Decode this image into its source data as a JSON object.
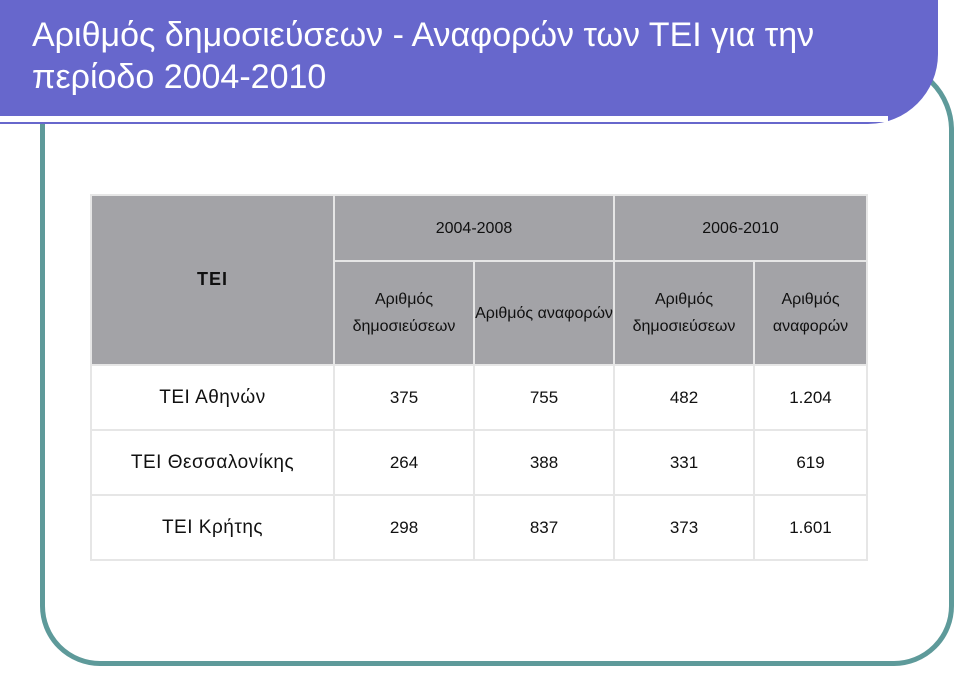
{
  "slide": {
    "title": "Αριθμός δημοσιεύσεων - Αναφορών των ΤΕΙ για την περίοδο 2004-2010",
    "colors": {
      "title_band": "#6767cc",
      "frame": "#5e9a9a",
      "header_fill": "#a3a3a7"
    }
  },
  "table": {
    "row_header": "ΤΕΙ",
    "periods": [
      "2004-2008",
      "2006-2010"
    ],
    "columns": [
      "Αριθμός δημοσιεύσεων",
      "Αριθμός αναφορών",
      "Αριθμός δημοσιεύσεων",
      "Αριθμός αναφορών"
    ],
    "rows": [
      {
        "name": "ΤΕΙ Αθηνών",
        "values": [
          "375",
          "755",
          "482",
          "1.204"
        ]
      },
      {
        "name": "ΤΕΙ Θεσσαλονίκης",
        "values": [
          "264",
          "388",
          "331",
          "619"
        ]
      },
      {
        "name": "ΤΕΙ Κρήτης",
        "values": [
          "298",
          "837",
          "373",
          "1.601"
        ]
      }
    ]
  }
}
